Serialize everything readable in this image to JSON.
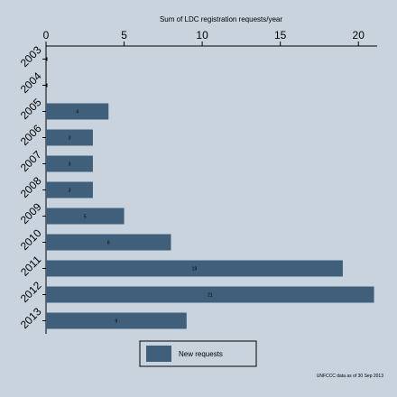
{
  "chart_data": {
    "type": "bar",
    "orientation": "horizontal",
    "title": "Sum of LDC registration requests/year",
    "categories": [
      "2003",
      "2004",
      "2005",
      "2006",
      "2007",
      "2008",
      "2009",
      "2010",
      "2011",
      "2012",
      "2013"
    ],
    "series": [
      {
        "name": "New requests",
        "color": "#3f5f7a",
        "values": [
          0,
          0,
          4,
          3,
          3,
          3,
          5,
          8,
          19,
          21,
          9
        ],
        "labels": [
          "",
          "",
          "4",
          "3",
          "3",
          "3",
          "5",
          "8",
          "19",
          "21",
          "9"
        ]
      }
    ],
    "xticks": [
      "0",
      "5",
      "10",
      "15",
      "20"
    ],
    "xlim": [
      0,
      21.2
    ],
    "xaxis_position": "top",
    "grid": false,
    "legend_position": "bottom",
    "note": "UNFCCC data as of 30 Sep 2013"
  },
  "colors": {
    "background": "#c9d3de",
    "plot_background": "#c9d3de",
    "bar": "#3f5f7a"
  }
}
